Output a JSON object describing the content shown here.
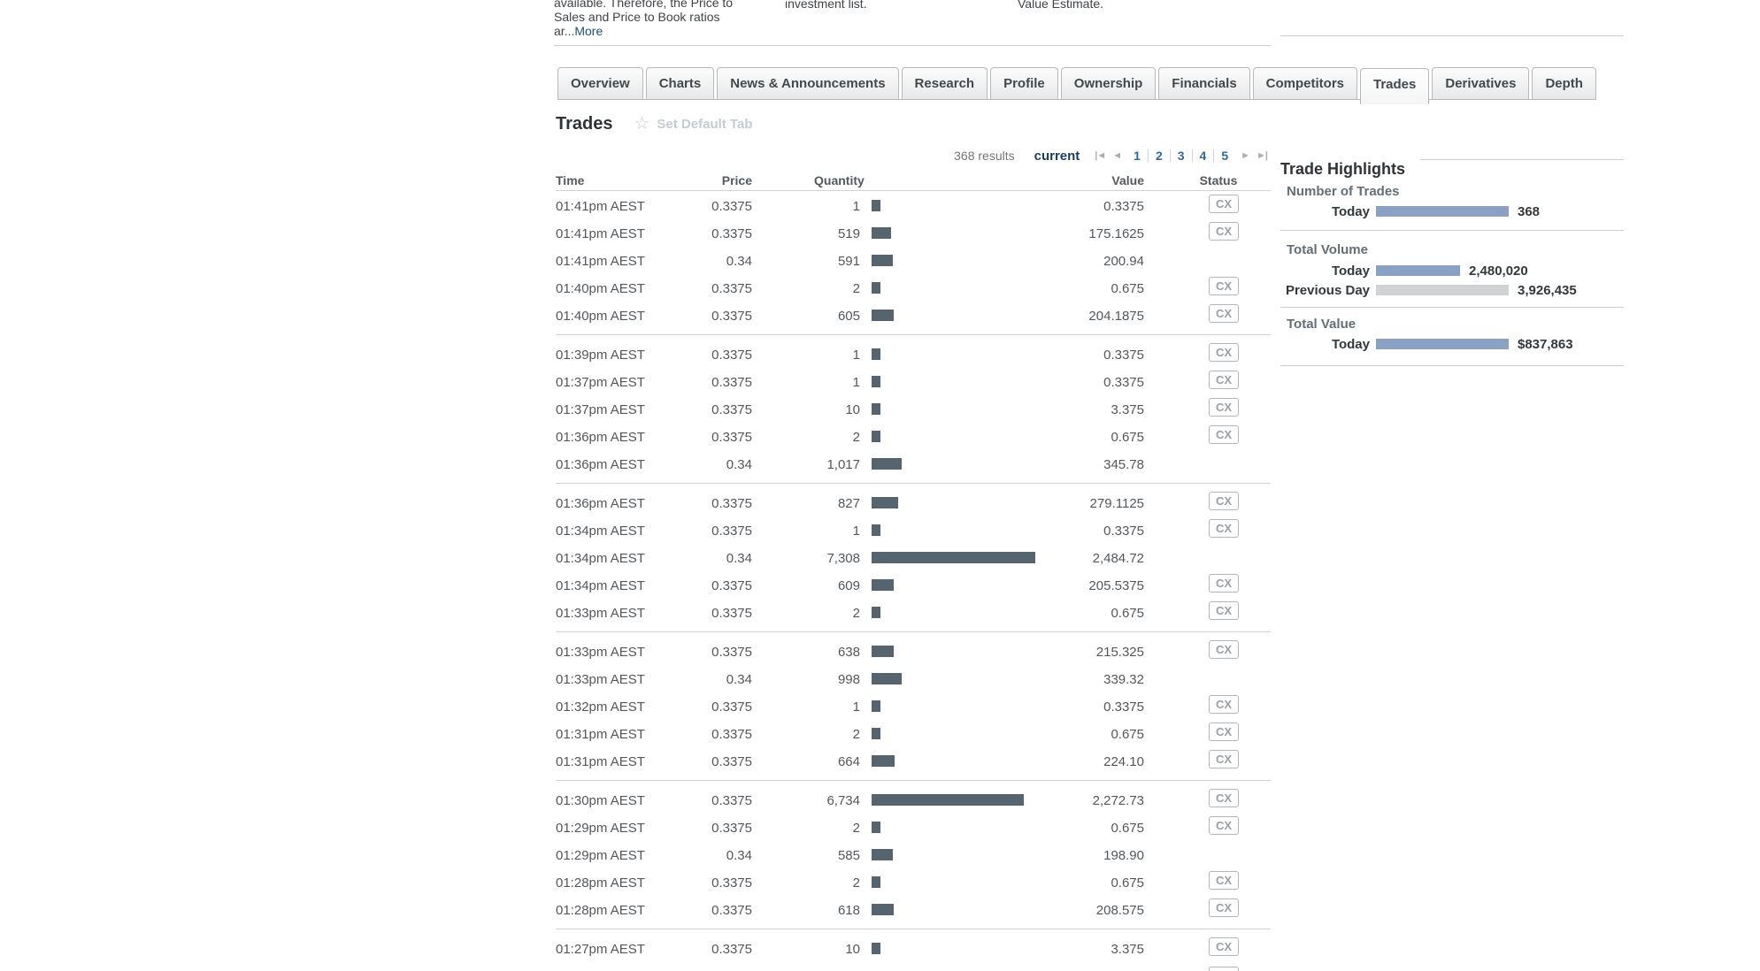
{
  "top": {
    "left_text_lines": [
      "available. Therefore, the Price to",
      "Sales and Price to Book ratios",
      "ar..."
    ],
    "more_link": "More",
    "middle_fragment": "investment list.",
    "right_fragment": "Value Estimate."
  },
  "tabs": {
    "items": [
      {
        "label": "Overview",
        "active": false
      },
      {
        "label": "Charts",
        "active": false
      },
      {
        "label": "News & Announcements",
        "active": false
      },
      {
        "label": "Research",
        "active": false
      },
      {
        "label": "Profile",
        "active": false
      },
      {
        "label": "Ownership",
        "active": false
      },
      {
        "label": "Financials",
        "active": false
      },
      {
        "label": "Competitors",
        "active": false
      },
      {
        "label": "Trades",
        "active": true
      },
      {
        "label": "Derivatives",
        "active": false
      },
      {
        "label": "Depth",
        "active": false
      }
    ]
  },
  "heading": {
    "title": "Trades",
    "star_icon": "star-icon",
    "set_default_label": "Set Default Tab"
  },
  "results_bar": {
    "results_text": "368 results",
    "view_label": "current",
    "first_icon": "|◄",
    "prev_icon": "◄",
    "next_icon": "►",
    "last_icon": "►|",
    "pages": [
      "1",
      "2",
      "3",
      "4",
      "5"
    ]
  },
  "table": {
    "headers": {
      "time": "Time",
      "price": "Price",
      "quantity": "Quantity",
      "value": "Value",
      "status": "Status"
    },
    "bar_color": "#55646f",
    "partial_next_row_status": "CX",
    "groups": [
      [
        {
          "time": "01:41pm AEST",
          "price": "0.3375",
          "quantity": "1",
          "quantity_num": 1,
          "value": "0.3375",
          "status": "CX"
        },
        {
          "time": "01:41pm AEST",
          "price": "0.3375",
          "quantity": "519",
          "quantity_num": 519,
          "value": "175.1625",
          "status": "CX"
        },
        {
          "time": "01:41pm AEST",
          "price": "0.34",
          "quantity": "591",
          "quantity_num": 591,
          "value": "200.94",
          "status": ""
        },
        {
          "time": "01:40pm AEST",
          "price": "0.3375",
          "quantity": "2",
          "quantity_num": 2,
          "value": "0.675",
          "status": "CX"
        },
        {
          "time": "01:40pm AEST",
          "price": "0.3375",
          "quantity": "605",
          "quantity_num": 605,
          "value": "204.1875",
          "status": "CX"
        }
      ],
      [
        {
          "time": "01:39pm AEST",
          "price": "0.3375",
          "quantity": "1",
          "quantity_num": 1,
          "value": "0.3375",
          "status": "CX"
        },
        {
          "time": "01:37pm AEST",
          "price": "0.3375",
          "quantity": "1",
          "quantity_num": 1,
          "value": "0.3375",
          "status": "CX"
        },
        {
          "time": "01:37pm AEST",
          "price": "0.3375",
          "quantity": "10",
          "quantity_num": 10,
          "value": "3.375",
          "status": "CX"
        },
        {
          "time": "01:36pm AEST",
          "price": "0.3375",
          "quantity": "2",
          "quantity_num": 2,
          "value": "0.675",
          "status": "CX"
        },
        {
          "time": "01:36pm AEST",
          "price": "0.34",
          "quantity": "1,017",
          "quantity_num": 1017,
          "value": "345.78",
          "status": ""
        }
      ],
      [
        {
          "time": "01:36pm AEST",
          "price": "0.3375",
          "quantity": "827",
          "quantity_num": 827,
          "value": "279.1125",
          "status": "CX"
        },
        {
          "time": "01:34pm AEST",
          "price": "0.3375",
          "quantity": "1",
          "quantity_num": 1,
          "value": "0.3375",
          "status": "CX"
        },
        {
          "time": "01:34pm AEST",
          "price": "0.34",
          "quantity": "7,308",
          "quantity_num": 7308,
          "value": "2,484.72",
          "status": ""
        },
        {
          "time": "01:34pm AEST",
          "price": "0.3375",
          "quantity": "609",
          "quantity_num": 609,
          "value": "205.5375",
          "status": "CX"
        },
        {
          "time": "01:33pm AEST",
          "price": "0.3375",
          "quantity": "2",
          "quantity_num": 2,
          "value": "0.675",
          "status": "CX"
        }
      ],
      [
        {
          "time": "01:33pm AEST",
          "price": "0.3375",
          "quantity": "638",
          "quantity_num": 638,
          "value": "215.325",
          "status": "CX"
        },
        {
          "time": "01:33pm AEST",
          "price": "0.34",
          "quantity": "998",
          "quantity_num": 998,
          "value": "339.32",
          "status": ""
        },
        {
          "time": "01:32pm AEST",
          "price": "0.3375",
          "quantity": "1",
          "quantity_num": 1,
          "value": "0.3375",
          "status": "CX"
        },
        {
          "time": "01:31pm AEST",
          "price": "0.3375",
          "quantity": "2",
          "quantity_num": 2,
          "value": "0.675",
          "status": "CX"
        },
        {
          "time": "01:31pm AEST",
          "price": "0.3375",
          "quantity": "664",
          "quantity_num": 664,
          "value": "224.10",
          "status": "CX"
        }
      ],
      [
        {
          "time": "01:30pm AEST",
          "price": "0.3375",
          "quantity": "6,734",
          "quantity_num": 6734,
          "value": "2,272.73",
          "status": "CX"
        },
        {
          "time": "01:29pm AEST",
          "price": "0.3375",
          "quantity": "2",
          "quantity_num": 2,
          "value": "0.675",
          "status": "CX"
        },
        {
          "time": "01:29pm AEST",
          "price": "0.34",
          "quantity": "585",
          "quantity_num": 585,
          "value": "198.90",
          "status": ""
        },
        {
          "time": "01:28pm AEST",
          "price": "0.3375",
          "quantity": "2",
          "quantity_num": 2,
          "value": "0.675",
          "status": "CX"
        },
        {
          "time": "01:28pm AEST",
          "price": "0.3375",
          "quantity": "618",
          "quantity_num": 618,
          "value": "208.575",
          "status": "CX"
        }
      ],
      [
        {
          "time": "01:27pm AEST",
          "price": "0.3375",
          "quantity": "10",
          "quantity_num": 10,
          "value": "3.375",
          "status": "CX"
        }
      ]
    ]
  },
  "highlights": {
    "title": "Trade Highlights",
    "bar_max_width": 150,
    "sections": [
      {
        "label": "Number of Trades",
        "rows": [
          {
            "label": "Today",
            "value": "368",
            "ratio": 1,
            "color": "#8aa1c3"
          }
        ]
      },
      {
        "label": "Total Volume",
        "rows": [
          {
            "label": "Today",
            "value": "2,480,020",
            "ratio": 0.632,
            "color": "#8aa1c3"
          },
          {
            "label": "Previous Day",
            "value": "3,926,435",
            "ratio": 1,
            "color": "#d2d3d4"
          }
        ]
      },
      {
        "label": "Total Value",
        "rows": [
          {
            "label": "Today",
            "value": "$837,863",
            "ratio": 1,
            "color": "#8aa1c3"
          }
        ]
      }
    ]
  }
}
